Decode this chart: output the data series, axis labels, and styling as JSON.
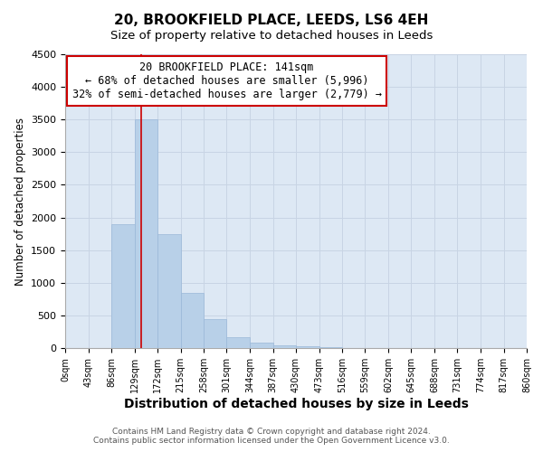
{
  "title": "20, BROOKFIELD PLACE, LEEDS, LS6 4EH",
  "subtitle": "Size of property relative to detached houses in Leeds",
  "xlabel": "Distribution of detached houses by size in Leeds",
  "ylabel": "Number of detached properties",
  "footer_line1": "Contains HM Land Registry data © Crown copyright and database right 2024.",
  "footer_line2": "Contains public sector information licensed under the Open Government Licence v3.0.",
  "annotation_line1": "20 BROOKFIELD PLACE: 141sqm",
  "annotation_line2": "← 68% of detached houses are smaller (5,996)",
  "annotation_line3": "32% of semi-detached houses are larger (2,779) →",
  "bar_color": "#b8d0e8",
  "bar_edge_color": "#9ab8d8",
  "grid_color": "#c8d4e4",
  "background_color": "#dde8f4",
  "property_line_color": "#cc0000",
  "property_line_x": 141,
  "bin_edges": [
    0,
    43,
    86,
    129,
    172,
    215,
    258,
    301,
    344,
    387,
    430,
    473,
    516,
    559,
    602,
    645,
    688,
    731,
    774,
    817,
    860
  ],
  "bar_heights": [
    0,
    0,
    1900,
    3500,
    1750,
    840,
    450,
    165,
    88,
    48,
    28,
    8,
    4,
    2,
    1,
    1,
    0,
    0,
    0,
    0
  ],
  "ylim": [
    0,
    4500
  ],
  "yticks": [
    0,
    500,
    1000,
    1500,
    2000,
    2500,
    3000,
    3500,
    4000,
    4500
  ],
  "annotation_box_color": "#ffffff",
  "annotation_box_edge_color": "#cc0000",
  "title_fontsize": 11,
  "subtitle_fontsize": 9.5,
  "xlabel_fontsize": 10,
  "ylabel_fontsize": 8.5,
  "tick_fontsize": 7,
  "annotation_fontsize": 8.5,
  "footer_fontsize": 6.5
}
